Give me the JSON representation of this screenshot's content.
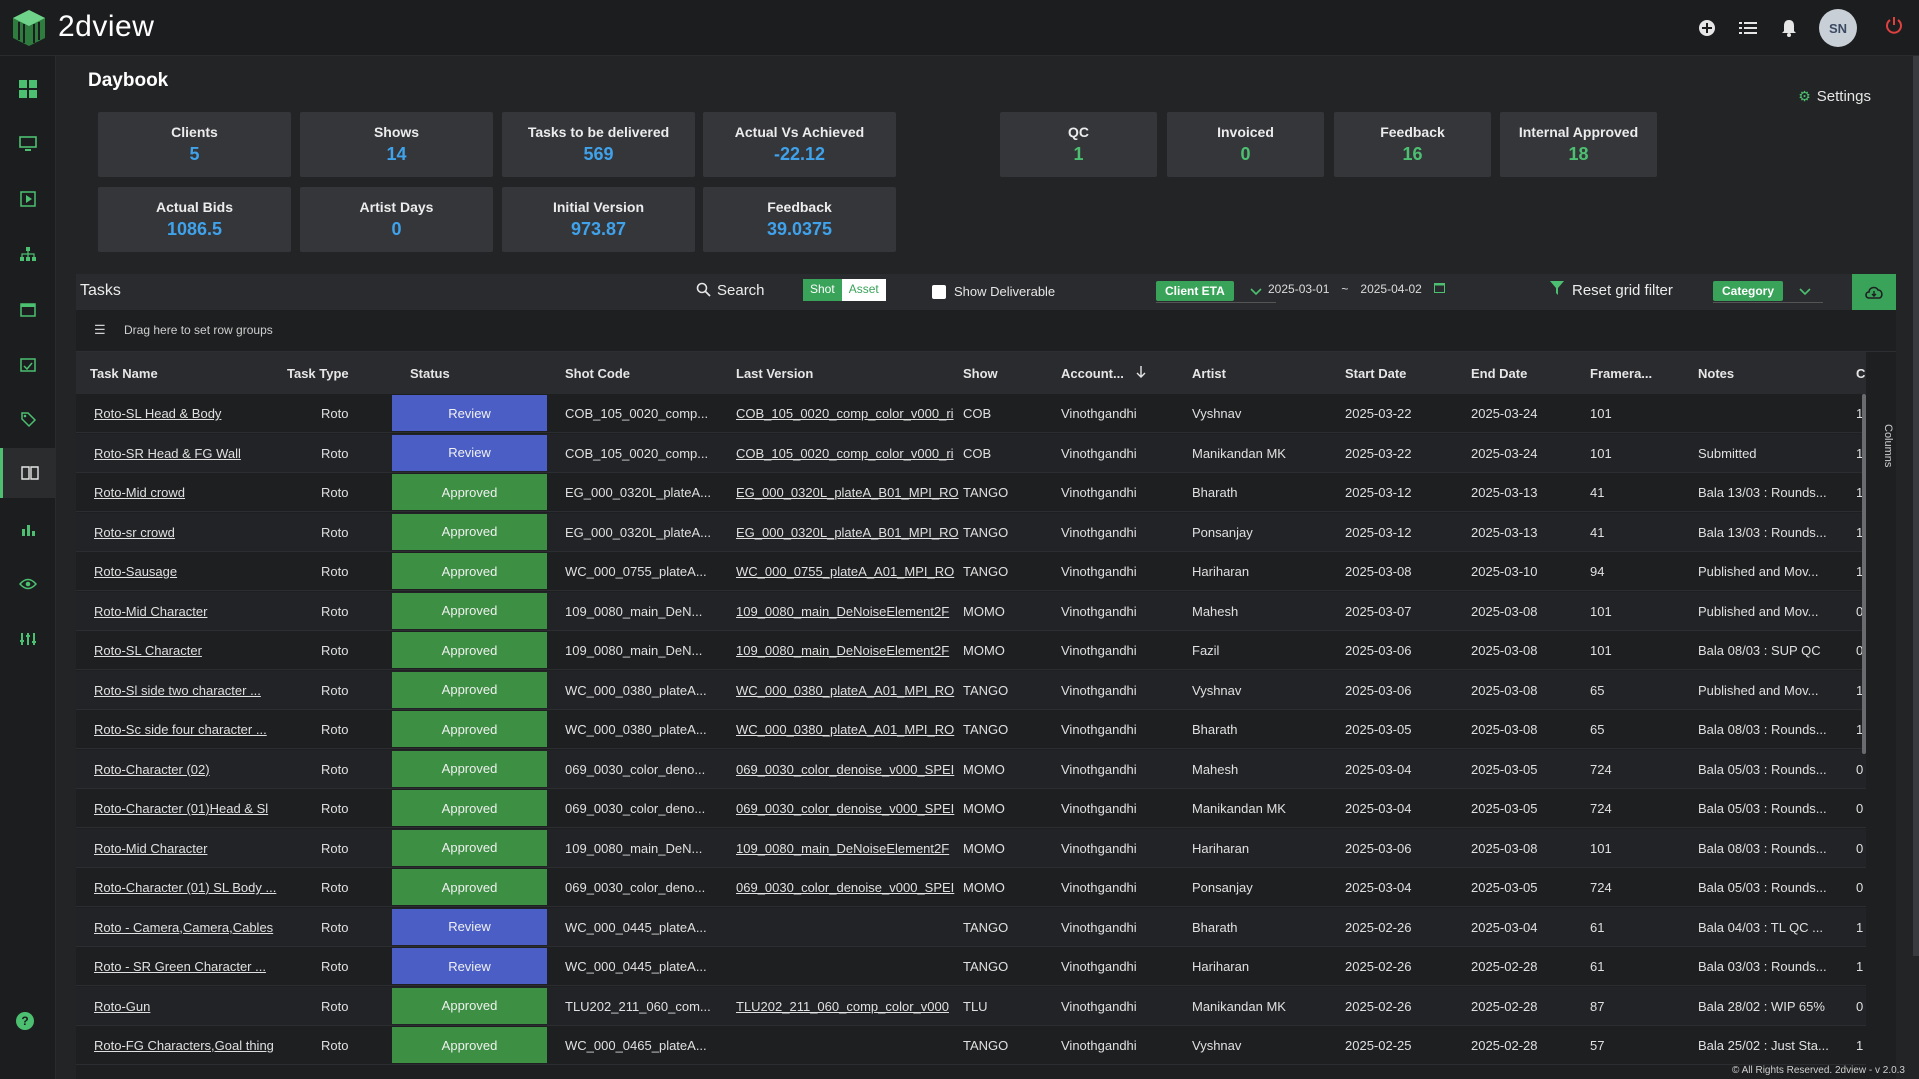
{
  "app": {
    "brand": "2dview"
  },
  "page": {
    "title": "Daybook",
    "settings_label": "Settings"
  },
  "header_icons": [
    "plus-circle-icon",
    "list-icon",
    "bell-icon"
  ],
  "user": {
    "initials": "SN"
  },
  "cards": {
    "clients": {
      "label": "Clients",
      "value": "5"
    },
    "shows": {
      "label": "Shows",
      "value": "14"
    },
    "tasks_delivered": {
      "label": "Tasks to be delivered",
      "value": "569"
    },
    "actual_vs_achieved": {
      "label": "Actual Vs Achieved",
      "value": "-22.12"
    },
    "actual_bids": {
      "label": "Actual Bids",
      "value": "1086.5"
    },
    "artist_days": {
      "label": "Artist Days",
      "value": "0"
    },
    "initial_version": {
      "label": "Initial Version",
      "value": "973.87"
    },
    "feedback_metric": {
      "label": "Feedback",
      "value": "39.0375"
    },
    "qc": {
      "label": "QC",
      "value": "1"
    },
    "invoiced": {
      "label": "Invoiced",
      "value": "0"
    },
    "feedback_count": {
      "label": "Feedback",
      "value": "16"
    },
    "internal_approved": {
      "label": "Internal Approved",
      "value": "18"
    }
  },
  "tasks": {
    "title": "Tasks",
    "search_label": "Search",
    "toggle_shot": "Shot",
    "toggle_asset": "Asset",
    "show_deliverable": "Show Deliverable",
    "client_eta": "Client ETA",
    "date_from": "2025-03-01",
    "date_sep": "~",
    "date_to": "2025-04-02",
    "reset_filter": "Reset grid filter",
    "category": "Category",
    "group_hint": "Drag here to set row groups",
    "columns_label": "Columns",
    "headers": {
      "task_name": "Task Name",
      "task_type": "Task Type",
      "status": "Status",
      "shot_code": "Shot Code",
      "last_version": "Last Version",
      "show": "Show",
      "account": "Account...",
      "artist": "Artist",
      "start_date": "Start Date",
      "end_date": "End Date",
      "framerange": "Framera...",
      "notes": "Notes",
      "extra": "C"
    },
    "rows": [
      {
        "name": "Roto-SL Head & Body",
        "type": "Roto",
        "status": "Review",
        "shot": "COB_105_0020_comp...",
        "version": "COB_105_0020_comp_color_v000_ri",
        "show": "COB",
        "account": "Vinothgandhi",
        "artist": "Vyshnav",
        "start": "2025-03-22",
        "end": "2025-03-24",
        "frames": "101",
        "notes": "",
        "extra": "1"
      },
      {
        "name": "Roto-SR Head & FG Wall",
        "type": "Roto",
        "status": "Review",
        "shot": "COB_105_0020_comp...",
        "version": "COB_105_0020_comp_color_v000_ri",
        "show": "COB",
        "account": "Vinothgandhi",
        "artist": "Manikandan MK",
        "start": "2025-03-22",
        "end": "2025-03-24",
        "frames": "101",
        "notes": "Submitted",
        "extra": "1"
      },
      {
        "name": "Roto-Mid crowd",
        "type": "Roto",
        "status": "Approved",
        "shot": "EG_000_0320L_plateA...",
        "version": "EG_000_0320L_plateA_B01_MPI_RO",
        "show": "TANGO",
        "account": "Vinothgandhi",
        "artist": "Bharath",
        "start": "2025-03-12",
        "end": "2025-03-13",
        "frames": "41",
        "notes": "Bala 13/03 : Rounds...",
        "extra": "1"
      },
      {
        "name": "Roto-sr crowd",
        "type": "Roto",
        "status": "Approved",
        "shot": "EG_000_0320L_plateA...",
        "version": "EG_000_0320L_plateA_B01_MPI_RO",
        "show": "TANGO",
        "account": "Vinothgandhi",
        "artist": "Ponsanjay",
        "start": "2025-03-12",
        "end": "2025-03-13",
        "frames": "41",
        "notes": "Bala 13/03 : Rounds...",
        "extra": "1"
      },
      {
        "name": "Roto-Sausage",
        "type": "Roto",
        "status": "Approved",
        "shot": "WC_000_0755_plateA...",
        "version": "WC_000_0755_plateA_A01_MPI_RO",
        "show": "TANGO",
        "account": "Vinothgandhi",
        "artist": "Hariharan",
        "start": "2025-03-08",
        "end": "2025-03-10",
        "frames": "94",
        "notes": "Published and Mov...",
        "extra": "1"
      },
      {
        "name": "Roto-Mid Character",
        "type": "Roto",
        "status": "Approved",
        "shot": "109_0080_main_DeN...",
        "version": "109_0080_main_DeNoiseElement2F",
        "show": "MOMO",
        "account": "Vinothgandhi",
        "artist": "Mahesh",
        "start": "2025-03-07",
        "end": "2025-03-08",
        "frames": "101",
        "notes": "Published and Mov...",
        "extra": "0"
      },
      {
        "name": "Roto-SL Character",
        "type": "Roto",
        "status": "Approved",
        "shot": "109_0080_main_DeN...",
        "version": "109_0080_main_DeNoiseElement2F",
        "show": "MOMO",
        "account": "Vinothgandhi",
        "artist": "Fazil",
        "start": "2025-03-06",
        "end": "2025-03-08",
        "frames": "101",
        "notes": "Bala 08/03 : SUP QC",
        "extra": "0"
      },
      {
        "name": "Roto-Sl side two character ...",
        "type": "Roto",
        "status": "Approved",
        "shot": "WC_000_0380_plateA...",
        "version": "WC_000_0380_plateA_A01_MPI_RO",
        "show": "TANGO",
        "account": "Vinothgandhi",
        "artist": "Vyshnav",
        "start": "2025-03-06",
        "end": "2025-03-08",
        "frames": "65",
        "notes": "Published and Mov...",
        "extra": "1"
      },
      {
        "name": "Roto-Sc side four character ...",
        "type": "Roto",
        "status": "Approved",
        "shot": "WC_000_0380_plateA...",
        "version": "WC_000_0380_plateA_A01_MPI_RO",
        "show": "TANGO",
        "account": "Vinothgandhi",
        "artist": "Bharath",
        "start": "2025-03-05",
        "end": "2025-03-08",
        "frames": "65",
        "notes": "Bala 08/03 : Rounds...",
        "extra": "1"
      },
      {
        "name": "Roto-Character (02)",
        "type": "Roto",
        "status": "Approved",
        "shot": "069_0030_color_deno...",
        "version": "069_0030_color_denoise_v000_SPEI",
        "show": "MOMO",
        "account": "Vinothgandhi",
        "artist": "Mahesh",
        "start": "2025-03-04",
        "end": "2025-03-05",
        "frames": "724",
        "notes": "Bala 05/03 : Rounds...",
        "extra": "0"
      },
      {
        "name": "Roto-Character (01)Head & Sl",
        "type": "Roto",
        "status": "Approved",
        "shot": "069_0030_color_deno...",
        "version": "069_0030_color_denoise_v000_SPEI",
        "show": "MOMO",
        "account": "Vinothgandhi",
        "artist": "Manikandan MK",
        "start": "2025-03-04",
        "end": "2025-03-05",
        "frames": "724",
        "notes": "Bala 05/03 : Rounds...",
        "extra": "0"
      },
      {
        "name": "Roto-Mid Character",
        "type": "Roto",
        "status": "Approved",
        "shot": "109_0080_main_DeN...",
        "version": "109_0080_main_DeNoiseElement2F",
        "show": "MOMO",
        "account": "Vinothgandhi",
        "artist": "Hariharan",
        "start": "2025-03-06",
        "end": "2025-03-08",
        "frames": "101",
        "notes": "Bala 08/03 : Rounds...",
        "extra": "0"
      },
      {
        "name": "Roto-Character (01) SL Body ...",
        "type": "Roto",
        "status": "Approved",
        "shot": "069_0030_color_deno...",
        "version": "069_0030_color_denoise_v000_SPEI",
        "show": "MOMO",
        "account": "Vinothgandhi",
        "artist": "Ponsanjay",
        "start": "2025-03-04",
        "end": "2025-03-05",
        "frames": "724",
        "notes": "Bala 05/03 : Rounds...",
        "extra": "0"
      },
      {
        "name": "Roto - Camera,Camera,Cables",
        "type": "Roto",
        "status": "Review",
        "shot": "WC_000_0445_plateA...",
        "version": "",
        "show": "TANGO",
        "account": "Vinothgandhi",
        "artist": "Bharath",
        "start": "2025-02-26",
        "end": "2025-03-04",
        "frames": "61",
        "notes": "Bala 04/03 : TL QC ...",
        "extra": "1"
      },
      {
        "name": "Roto - SR Green Character ...",
        "type": "Roto",
        "status": "Review",
        "shot": "WC_000_0445_plateA...",
        "version": "",
        "show": "TANGO",
        "account": "Vinothgandhi",
        "artist": "Hariharan",
        "start": "2025-02-26",
        "end": "2025-02-28",
        "frames": "61",
        "notes": "Bala 03/03 : Rounds...",
        "extra": "1"
      },
      {
        "name": "Roto-Gun",
        "type": "Roto",
        "status": "Approved",
        "shot": "TLU202_211_060_com...",
        "version": "TLU202_211_060_comp_color_v000",
        "show": "TLU",
        "account": "Vinothgandhi",
        "artist": "Manikandan MK",
        "start": "2025-02-26",
        "end": "2025-02-28",
        "frames": "87",
        "notes": "Bala 28/02 : WIP 65%",
        "extra": "0"
      },
      {
        "name": "Roto-FG Characters,Goal thing",
        "type": "Roto",
        "status": "Approved",
        "shot": "WC_000_0465_plateA...",
        "version": "",
        "show": "TANGO",
        "account": "Vinothgandhi",
        "artist": "Vyshnav",
        "start": "2025-02-25",
        "end": "2025-02-28",
        "frames": "57",
        "notes": "Bala 25/02 : Just Sta...",
        "extra": "1"
      }
    ]
  },
  "footer": {
    "text": "© All Rights Reserved. 2dview - v 2.0.3"
  },
  "colors": {
    "accent": "#4cc070",
    "review": "#4a5ec6",
    "approved": "#3d8f43",
    "value_blue": "#3fa2ea"
  }
}
